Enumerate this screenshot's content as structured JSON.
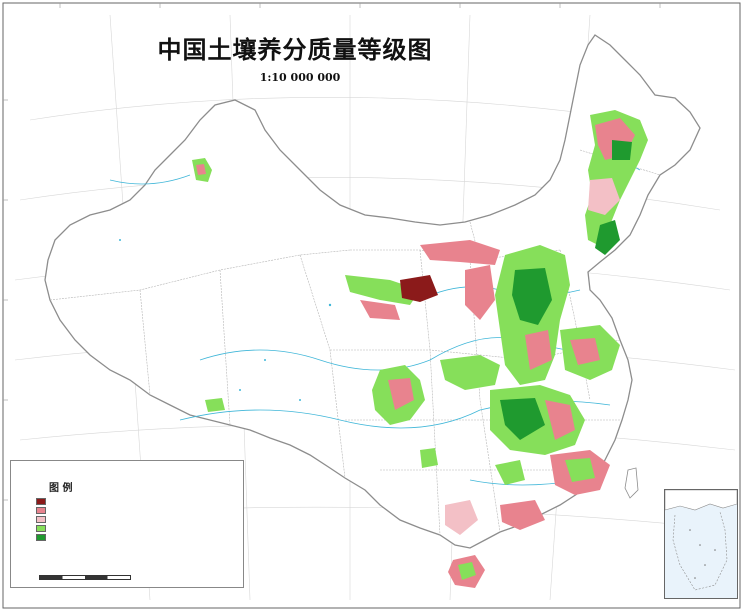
{
  "map": {
    "title": "中国土壤养分质量等级图",
    "scale": "1:10 000 000"
  },
  "legend": {
    "title": "图 例",
    "rows": [
      {
        "color": "#8b1a1a"
      },
      {
        "color": "#e8838e"
      },
      {
        "color": "#f3c0c6"
      },
      {
        "color": "#86df5a"
      },
      {
        "color": "#1f9a2f"
      }
    ]
  },
  "footer": {},
  "colors": {
    "grade1": "#8b1a1a",
    "grade2": "#e8838e",
    "grade3": "#f3c0c6",
    "grade4": "#86df5a",
    "grade5": "#1f9a2f",
    "boundary": "#9a9a9a",
    "river": "#3fb6d8"
  }
}
